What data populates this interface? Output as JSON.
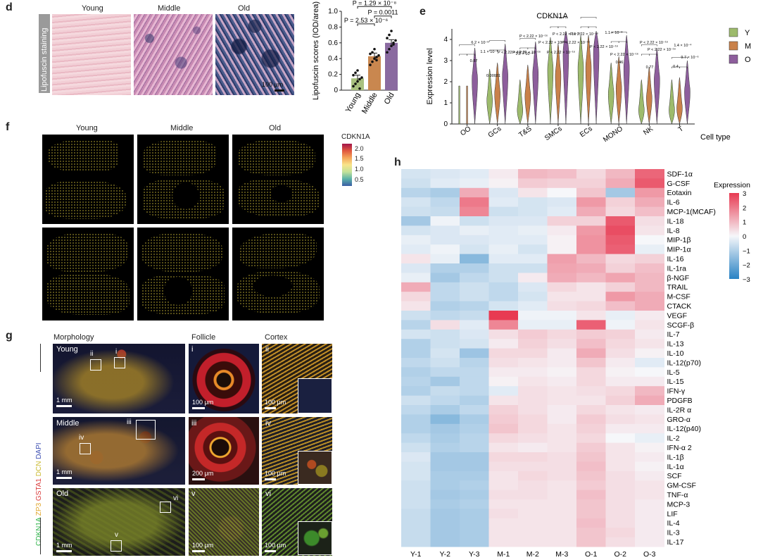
{
  "panel_d": {
    "letter": "d",
    "y_side_label": "Lipofuscin staining",
    "columns": [
      "Young",
      "Middle",
      "Old"
    ],
    "scale": "100 μm"
  },
  "chart_data": [
    {
      "type": "bar",
      "ylabel": "Lipofuscin scores (IOD/area)",
      "categories": [
        "Young",
        "Middle",
        "Old"
      ],
      "values": [
        0.15,
        0.43,
        0.6
      ],
      "errors": [
        0.04,
        0.04,
        0.04
      ],
      "points": [
        [
          0.05,
          0.08,
          0.11,
          0.14,
          0.16,
          0.19,
          0.22,
          0.25,
          0.02
        ],
        [
          0.32,
          0.36,
          0.4,
          0.42,
          0.44,
          0.46,
          0.48,
          0.52,
          0.38
        ],
        [
          0.48,
          0.52,
          0.56,
          0.6,
          0.63,
          0.66,
          0.7,
          0.75,
          0.58
        ]
      ],
      "colors": [
        "#a9c17f",
        "#c9874f",
        "#8a6aa0"
      ],
      "ylim": [
        0,
        1.0
      ],
      "yticks": [
        "0",
        "0.2",
        "0.4",
        "0.6",
        "0.8",
        "1.0"
      ],
      "pvalues": [
        "P = 2.53 × 10⁻⁶",
        "P = 0.0011",
        "P = 1.29 × 10⁻⁸"
      ]
    },
    {
      "type": "violin",
      "title": "CDKN1A",
      "ylabel": "Expression level",
      "xlabel": "Cell type",
      "categories": [
        "OO",
        "GCs",
        "T&S",
        "SMCs",
        "ECs",
        "MONO",
        "NK",
        "T"
      ],
      "yticks": [
        "0",
        "1",
        "2",
        "3",
        "4"
      ],
      "ylim": [
        0,
        4.5
      ],
      "legend": [
        {
          "name": "Y",
          "color": "#9dbb6c"
        },
        {
          "name": "M",
          "color": "#c9814a"
        },
        {
          "name": "O",
          "color": "#8d5e9c"
        }
      ],
      "medians_by_group": {
        "OO": [
          0.0,
          0.0,
          2.0
        ],
        "GCs": [
          1.0,
          1.3,
          2.2
        ],
        "T&S": [
          0.5,
          1.2,
          2.3
        ],
        "SMCs": [
          2.5,
          2.2,
          3.3
        ],
        "ECs": [
          2.6,
          2.6,
          3.3
        ],
        "MONO": [
          1.3,
          1.6,
          2.6
        ],
        "NK": [
          0.5,
          1.1,
          2.0
        ],
        "T": [
          0.5,
          0.6,
          1.4
        ]
      },
      "annotations": [
        "6.2 × 10⁻⁸",
        "1.1 × 10⁻⁴",
        "0.87",
        "P < 2.22 × 10⁻¹⁶",
        "0.00031",
        "1.2 × 10⁻⁵",
        "1.1 × 10⁻⁸",
        "0.46",
        "0.77",
        "1.4 × 10⁻⁴",
        "0.4",
        "9.7 × 10⁻⁶"
      ]
    },
    {
      "type": "heatmap",
      "columns": [
        "Y-1",
        "Y-2",
        "Y-3",
        "M-1",
        "M-2",
        "M-3",
        "O-1",
        "O-2",
        "O-3"
      ],
      "rows": [
        "SDF-1α",
        "G-CSF",
        "Eotaxin",
        "IL-6",
        "MCP-1(MCAF)",
        "IL-18",
        "IL-8",
        "MIP-1β",
        "MIP-1α",
        "IL-16",
        "IL-1ra",
        "β-NGF",
        "TRAIL",
        "M-CSF",
        "CTACK",
        "VEGF",
        "SCGF-β",
        "IL-7",
        "IL-13",
        "IL-10",
        "IL-12(p70)",
        "IL-5",
        "IL-15",
        "IFN-γ",
        "PDGFB",
        "IL-2R α",
        "GRO-α",
        "IL-12(p40)",
        "IL-2",
        "IFN-α 2",
        "IL-1β",
        "IL-1α",
        "SCF",
        "GM-CSF",
        "TNF-α",
        "MCP-3",
        "LIF",
        "IL-4",
        "IL-3",
        "IL-17"
      ],
      "values": [
        [
          -0.5,
          -0.4,
          -0.3,
          0.2,
          1.0,
          0.9,
          0.5,
          1.0,
          2.3
        ],
        [
          -0.6,
          -0.3,
          -0.2,
          0.1,
          0.7,
          0.6,
          0.6,
          1.2,
          2.5
        ],
        [
          -0.9,
          -1.1,
          1.2,
          -0.4,
          0.3,
          0.0,
          0.8,
          -1.2,
          1.5
        ],
        [
          -0.5,
          -0.8,
          2.0,
          -0.3,
          -0.5,
          -0.4,
          1.5,
          0.6,
          1.2
        ],
        [
          -0.6,
          -0.7,
          1.8,
          -0.6,
          -0.5,
          -0.3,
          1.2,
          0.5,
          0.9
        ],
        [
          -1.2,
          -0.1,
          -0.6,
          -0.4,
          -0.4,
          0.6,
          0.6,
          2.5,
          0.4
        ],
        [
          -0.5,
          -0.4,
          -0.2,
          -0.3,
          -0.2,
          0.2,
          1.5,
          2.7,
          0.3
        ],
        [
          -0.2,
          -0.4,
          -0.4,
          -0.3,
          -0.3,
          0.1,
          1.6,
          2.5,
          0.0
        ],
        [
          -0.3,
          -0.1,
          -0.5,
          -0.2,
          -0.5,
          0.1,
          1.6,
          2.4,
          -0.2
        ],
        [
          0.3,
          -0.2,
          -1.6,
          -0.3,
          -0.3,
          1.4,
          1.0,
          0.5,
          0.6
        ],
        [
          -0.4,
          -1.0,
          -1.0,
          -0.6,
          -0.6,
          1.3,
          1.2,
          0.6,
          0.9
        ],
        [
          -0.2,
          -1.2,
          -0.8,
          -0.6,
          0.2,
          1.2,
          1.0,
          1.3,
          1.0
        ],
        [
          1.2,
          -0.8,
          -0.6,
          -0.8,
          -0.4,
          0.5,
          0.3,
          0.6,
          1.0
        ],
        [
          0.5,
          -0.8,
          -0.6,
          -0.8,
          -0.5,
          0.3,
          0.3,
          1.5,
          1.2
        ],
        [
          0.3,
          -1.0,
          -0.9,
          -0.5,
          -0.3,
          0.4,
          0.5,
          0.9,
          1.2
        ],
        [
          -0.6,
          -0.8,
          -0.7,
          3.0,
          -0.1,
          -0.1,
          0.3,
          -0.2,
          0.2
        ],
        [
          -0.9,
          0.4,
          -0.3,
          1.8,
          -0.2,
          -0.2,
          2.4,
          -0.1,
          0.3
        ],
        [
          -0.5,
          -0.6,
          -0.4,
          0.4,
          0.7,
          0.5,
          0.7,
          0.6,
          0.2
        ],
        [
          -1.0,
          -0.6,
          -0.5,
          0.2,
          0.6,
          0.4,
          0.9,
          0.5,
          0.3
        ],
        [
          -1.0,
          -0.5,
          -1.3,
          0.5,
          0.5,
          0.2,
          1.2,
          0.4,
          0.1
        ],
        [
          -0.8,
          -0.6,
          -0.9,
          0.4,
          0.3,
          0.2,
          0.8,
          0.2,
          -0.3
        ],
        [
          -1.0,
          -0.8,
          -0.8,
          0.2,
          0.2,
          0.1,
          0.5,
          0.1,
          0.0
        ],
        [
          -0.9,
          -1.2,
          -0.8,
          0.1,
          0.3,
          0.2,
          0.5,
          0.2,
          0.2
        ],
        [
          -1.0,
          -0.7,
          -0.8,
          -0.3,
          0.4,
          0.3,
          0.4,
          0.5,
          1.0
        ],
        [
          -0.6,
          -0.8,
          -1.0,
          0.3,
          0.4,
          0.3,
          0.3,
          0.6,
          1.2
        ],
        [
          -0.8,
          -1.1,
          -0.8,
          0.6,
          0.4,
          0.2,
          0.5,
          0.3,
          0.2
        ],
        [
          -1.0,
          -1.6,
          -1.1,
          0.7,
          0.5,
          0.2,
          0.7,
          0.4,
          0.3
        ],
        [
          -1.0,
          -1.2,
          -1.0,
          0.8,
          0.5,
          0.3,
          0.6,
          0.2,
          0.2
        ],
        [
          -0.8,
          -1.1,
          -0.9,
          0.5,
          0.4,
          0.3,
          0.5,
          0.0,
          -0.2
        ],
        [
          -0.6,
          -1.0,
          -0.9,
          0.3,
          0.2,
          0.3,
          0.7,
          0.3,
          0.1
        ],
        [
          -0.4,
          -1.2,
          -1.2,
          0.5,
          0.5,
          0.4,
          0.8,
          0.3,
          0.2
        ],
        [
          -0.5,
          -1.2,
          -1.2,
          0.4,
          0.4,
          0.4,
          0.9,
          0.3,
          0.1
        ],
        [
          -0.5,
          -1.1,
          -1.1,
          0.3,
          0.5,
          0.4,
          0.8,
          0.4,
          0.2
        ],
        [
          -0.6,
          -1.1,
          -1.0,
          0.3,
          0.4,
          0.3,
          0.7,
          0.4,
          0.3
        ],
        [
          -0.6,
          -1.2,
          -1.1,
          0.4,
          0.4,
          0.3,
          0.9,
          0.4,
          0.3
        ],
        [
          -0.6,
          -1.1,
          -1.0,
          0.3,
          0.3,
          0.3,
          0.8,
          0.4,
          0.2
        ],
        [
          -0.7,
          -1.2,
          -1.1,
          0.4,
          0.3,
          0.3,
          0.8,
          0.4,
          0.2
        ],
        [
          -0.7,
          -1.2,
          -1.1,
          0.3,
          0.3,
          0.3,
          0.9,
          0.4,
          0.2
        ],
        [
          -0.7,
          -1.2,
          -1.1,
          0.3,
          0.3,
          0.3,
          0.8,
          0.5,
          0.2
        ],
        [
          -0.7,
          -1.2,
          -1.1,
          0.3,
          0.3,
          0.3,
          0.8,
          0.4,
          0.2
        ]
      ],
      "legend_title": "Expression",
      "legend_ticks": [
        "3",
        "2",
        "1",
        "0",
        "-1",
        "-2",
        "-3"
      ],
      "vmin": -3,
      "vmax": 3
    }
  ],
  "panel_e": {
    "letter": "e"
  },
  "panel_f": {
    "letter": "f",
    "columns": [
      "Young",
      "Middle",
      "Old"
    ],
    "legend_title": "CDKN1A",
    "legend_ticks": [
      "2.0",
      "1.5",
      "1.0",
      "0.5"
    ]
  },
  "panel_g": {
    "letter": "g",
    "headers": [
      "Morphology",
      "Follicle",
      "Cortex"
    ],
    "side_label_parts": [
      {
        "text": "CDKN1A ",
        "color": "#2fb34a"
      },
      {
        "text": "ZP3 ",
        "color": "#e0a52a"
      },
      {
        "text": "GSTA1 ",
        "color": "#d93a3a"
      },
      {
        "text": "DCN ",
        "color": "#e6d83c"
      },
      {
        "text": "DAPI",
        "color": "#3b4db0"
      }
    ],
    "rows": [
      {
        "age": "Young",
        "scale_morph": "1 mm",
        "box_labels": [
          "ii",
          "i"
        ],
        "follicle_tag": "i",
        "follicle_scale": "100 μm",
        "cortex_tag": "ii",
        "cortex_scale": "100 μm"
      },
      {
        "age": "Middle",
        "scale_morph": "1 mm",
        "box_labels": [
          "iv",
          "iii"
        ],
        "follicle_tag": "iii",
        "follicle_scale": "200 μm",
        "cortex_tag": "iv",
        "cortex_scale": "100 μm"
      },
      {
        "age": "Old",
        "scale_morph": "1 mm",
        "box_labels": [
          "vi",
          "v"
        ],
        "follicle_tag": "v",
        "follicle_scale": "100 μm",
        "cortex_tag": "vi",
        "cortex_scale": "100 μm"
      }
    ]
  },
  "panel_h": {
    "letter": "h"
  }
}
